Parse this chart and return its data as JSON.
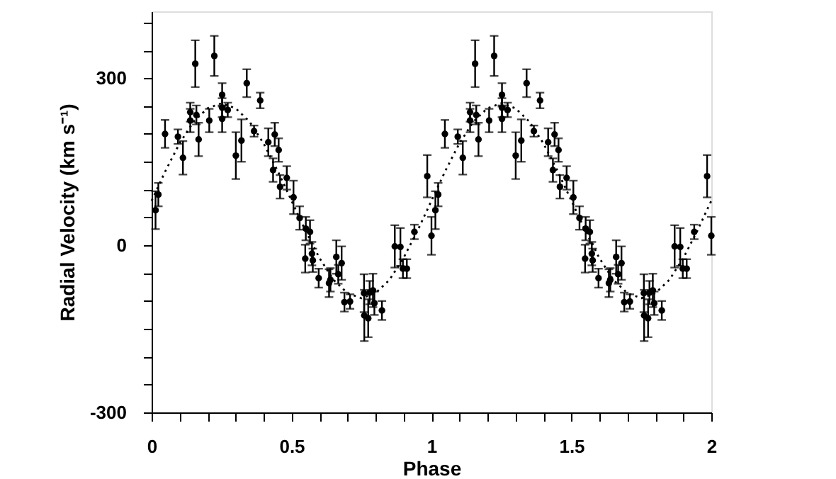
{
  "chart_data": {
    "type": "scatter",
    "xlabel": "Phase",
    "ylabel": "Radial Velocity (km s⁻¹)",
    "xlim": [
      0,
      2
    ],
    "ylim": [
      -300,
      420
    ],
    "xticks": [
      0,
      {
        "value": 0.1,
        "label": null
      },
      {
        "value": 0.2,
        "label": null
      },
      {
        "value": 0.3,
        "label": null
      },
      {
        "value": 0.4,
        "label": null
      },
      0.5,
      {
        "value": 0.6,
        "label": null
      },
      {
        "value": 0.7,
        "label": null
      },
      {
        "value": 0.8,
        "label": null
      },
      {
        "value": 0.9,
        "label": null
      },
      1,
      {
        "value": 1.1,
        "label": null
      },
      {
        "value": 1.2,
        "label": null
      },
      {
        "value": 1.3,
        "label": null
      },
      {
        "value": 1.4,
        "label": null
      },
      1.5,
      {
        "value": 1.6,
        "label": null
      },
      {
        "value": 1.7,
        "label": null
      },
      {
        "value": 1.8,
        "label": null
      },
      {
        "value": 1.9,
        "label": null
      },
      2
    ],
    "yticks": [
      -300,
      {
        "value": -250,
        "label": null
      },
      {
        "value": -200,
        "label": null
      },
      {
        "value": -150,
        "label": null
      },
      {
        "value": -100,
        "label": null
      },
      {
        "value": -50,
        "label": null
      },
      0,
      {
        "value": 50,
        "label": null
      },
      {
        "value": 100,
        "label": null
      },
      {
        "value": 150,
        "label": null
      },
      {
        "value": 200,
        "label": null
      },
      {
        "value": 250,
        "label": null
      },
      300,
      {
        "value": 350,
        "label": null
      },
      {
        "value": 400,
        "label": null
      }
    ],
    "grid": false,
    "marker": "circle",
    "series": [
      {
        "color": "#000000",
        "x": [
          0.014,
          0.024,
          0.048,
          0.094,
          0.112,
          0.138,
          0.138,
          0.156,
          0.16,
          0.168,
          0.206,
          0.224,
          0.252,
          0.252,
          0.252,
          0.272,
          0.301,
          0.321,
          0.34,
          0.366,
          0.388,
          0.417,
          0.434,
          0.44,
          0.454,
          0.459,
          0.483,
          0.507,
          0.529,
          0.551,
          0.566,
          0.549,
          0.573,
          0.576,
          0.597,
          0.634,
          0.639,
          0.66,
          0.667,
          0.679,
          0.689,
          0.709,
          0.759,
          0.76,
          0.774,
          0.779,
          0.791,
          0.796,
          0.823,
          0.869,
          0.889,
          0.898,
          0.912,
          0.939,
          0.985,
          1.0,
          1.014,
          1.024,
          1.048,
          1.094,
          1.112,
          1.138,
          1.138,
          1.156,
          1.16,
          1.168,
          1.206,
          1.224,
          1.252,
          1.252,
          1.252,
          1.272,
          1.301,
          1.321,
          1.34,
          1.366,
          1.388,
          1.417,
          1.434,
          1.44,
          1.454,
          1.459,
          1.483,
          1.507,
          1.529,
          1.551,
          1.566,
          1.549,
          1.573,
          1.576,
          1.597,
          1.634,
          1.639,
          1.66,
          1.667,
          1.679,
          1.689,
          1.709,
          1.759,
          1.76,
          1.774,
          1.779,
          1.791,
          1.796,
          1.823,
          1.869,
          1.889,
          1.898,
          1.912,
          1.939,
          1.985,
          2.0
        ],
        "values": [
          63,
          91,
          200,
          195,
          157,
          239,
          224,
          326,
          234,
          190,
          224,
          340,
          270,
          247,
          227,
          243,
          161,
          188,
          291,
          205,
          260,
          185,
          135,
          199,
          171,
          105,
          121,
          86,
          49,
          30,
          24,
          -24,
          -15,
          -27,
          -59,
          -68,
          -62,
          -21,
          -52,
          -32,
          -102,
          -101,
          -86,
          -126,
          -131,
          -85,
          -81,
          -104,
          -117,
          -2,
          -3,
          -42,
          -42,
          24,
          124,
          17,
          63,
          91,
          200,
          195,
          157,
          239,
          224,
          326,
          234,
          190,
          224,
          340,
          270,
          247,
          227,
          243,
          161,
          188,
          291,
          205,
          260,
          185,
          135,
          199,
          171,
          105,
          121,
          86,
          49,
          30,
          24,
          -24,
          -15,
          -27,
          -59,
          -68,
          -62,
          -21,
          -52,
          -32,
          -102,
          -101,
          -86,
          -126,
          -131,
          -85,
          -81,
          -104,
          -117,
          -2,
          -3,
          -42,
          -42,
          24,
          124,
          17
        ],
        "errors": [
          34,
          21,
          25,
          13,
          30,
          17,
          21,
          42,
          17,
          30,
          21,
          36,
          21,
          17,
          24,
          13,
          42,
          38,
          25,
          10,
          14,
          25,
          21,
          21,
          21,
          21,
          21,
          30,
          21,
          21,
          21,
          25,
          21,
          21,
          17,
          25,
          21,
          30,
          17,
          30,
          17,
          13,
          34,
          46,
          34,
          21,
          30,
          21,
          17,
          38,
          34,
          17,
          17,
          13,
          38,
          34,
          34,
          21,
          25,
          13,
          30,
          17,
          21,
          42,
          17,
          30,
          21,
          36,
          21,
          17,
          24,
          13,
          42,
          38,
          25,
          10,
          14,
          25,
          21,
          21,
          21,
          21,
          21,
          30,
          21,
          21,
          21,
          25,
          21,
          21,
          17,
          25,
          21,
          30,
          17,
          30,
          17,
          13,
          34,
          46,
          34,
          21,
          30,
          21,
          17,
          38,
          34,
          17,
          17,
          13,
          38,
          34
        ]
      },
      {
        "type": "line",
        "line_style": "dotted",
        "marker": "none",
        "color": "#000000",
        "x": [
          0,
          0.05,
          0.1,
          0.15,
          0.2,
          0.25,
          0.3,
          0.35,
          0.4,
          0.45,
          0.5,
          0.55,
          0.6,
          0.65,
          0.7,
          0.75,
          0.8,
          0.85,
          0.9,
          0.95,
          1.0,
          1.05,
          1.1,
          1.15,
          1.2,
          1.25,
          1.3,
          1.35,
          1.4,
          1.45,
          1.5,
          1.55,
          1.6,
          1.65,
          1.7,
          1.75,
          1.8,
          1.85,
          1.9,
          1.95,
          2.0
        ],
        "values": [
          80,
          134,
          183,
          222,
          246,
          255,
          246,
          222,
          183,
          134,
          80,
          26,
          -23,
          -62,
          -86,
          -95,
          -86,
          -62,
          -23,
          26,
          80,
          134,
          183,
          222,
          246,
          255,
          246,
          222,
          183,
          134,
          80,
          26,
          -23,
          -62,
          -86,
          -95,
          -86,
          -62,
          -23,
          26,
          80
        ]
      }
    ]
  }
}
